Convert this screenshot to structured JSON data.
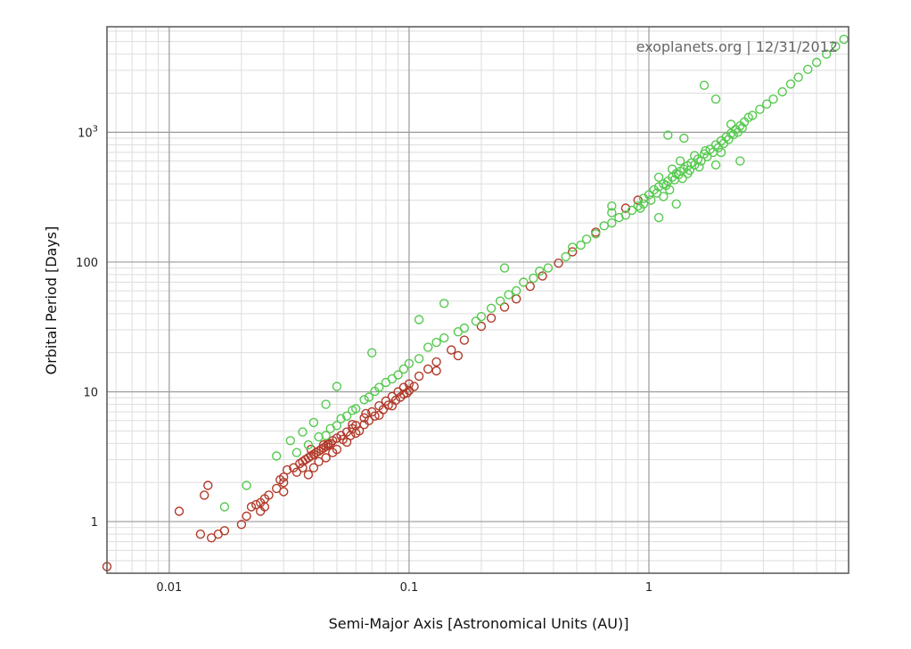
{
  "chart_data": {
    "type": "scatter",
    "title": "",
    "annotation": "exoplanets.org | 12/31/2012",
    "xlabel": "Semi-Major Axis [Astronomical Units (AU)]",
    "ylabel": "Orbital Period [Days]",
    "xscale": "log",
    "yscale": "log",
    "xlim": [
      0.0055,
      6.8
    ],
    "ylim": [
      0.4,
      6500
    ],
    "grid": true,
    "x_ticks": [
      {
        "value": 0.01,
        "label": "0.01"
      },
      {
        "value": 0.1,
        "label": "0.1"
      },
      {
        "value": 1,
        "label": "1"
      }
    ],
    "y_ticks": [
      {
        "value": 1,
        "label": "1"
      },
      {
        "value": 10,
        "label": "10"
      },
      {
        "value": 100,
        "label": "100"
      },
      {
        "value": 1000,
        "label": "10",
        "sup": "3"
      }
    ],
    "series": [
      {
        "marker": "open-circle",
        "color": "#b23a2a",
        "points": [
          [
            0.0055,
            0.45
          ],
          [
            0.011,
            1.2
          ],
          [
            0.014,
            1.6
          ],
          [
            0.0145,
            1.9
          ],
          [
            0.0135,
            0.8
          ],
          [
            0.015,
            0.75
          ],
          [
            0.016,
            0.8
          ],
          [
            0.017,
            0.85
          ],
          [
            0.02,
            0.95
          ],
          [
            0.021,
            1.1
          ],
          [
            0.022,
            1.3
          ],
          [
            0.023,
            1.35
          ],
          [
            0.024,
            1.4
          ],
          [
            0.025,
            1.5
          ],
          [
            0.026,
            1.6
          ],
          [
            0.028,
            1.8
          ],
          [
            0.029,
            2.1
          ],
          [
            0.03,
            2.2
          ],
          [
            0.031,
            2.5
          ],
          [
            0.033,
            2.6
          ],
          [
            0.035,
            2.8
          ],
          [
            0.036,
            2.9
          ],
          [
            0.037,
            3.0
          ],
          [
            0.038,
            3.1
          ],
          [
            0.039,
            3.2
          ],
          [
            0.04,
            3.3
          ],
          [
            0.041,
            3.4
          ],
          [
            0.042,
            3.5
          ],
          [
            0.043,
            3.6
          ],
          [
            0.044,
            3.7
          ],
          [
            0.045,
            3.8
          ],
          [
            0.046,
            3.9
          ],
          [
            0.047,
            4.0
          ],
          [
            0.048,
            4.2
          ],
          [
            0.05,
            4.4
          ],
          [
            0.052,
            4.6
          ],
          [
            0.055,
            4.9
          ],
          [
            0.058,
            5.2
          ],
          [
            0.06,
            5.5
          ],
          [
            0.065,
            6.3
          ],
          [
            0.07,
            7.0
          ],
          [
            0.075,
            7.8
          ],
          [
            0.08,
            8.5
          ],
          [
            0.085,
            9.2
          ],
          [
            0.09,
            10.0
          ],
          [
            0.095,
            10.8
          ],
          [
            0.1,
            11.5
          ],
          [
            0.11,
            13.2
          ],
          [
            0.12,
            15.0
          ],
          [
            0.13,
            17.0
          ],
          [
            0.15,
            21.0
          ],
          [
            0.17,
            25.0
          ],
          [
            0.2,
            32.0
          ],
          [
            0.22,
            37.0
          ],
          [
            0.25,
            45.0
          ],
          [
            0.28,
            52.0
          ],
          [
            0.32,
            65.0
          ],
          [
            0.36,
            78.0
          ],
          [
            0.42,
            98.0
          ],
          [
            0.48,
            120.0
          ],
          [
            0.6,
            170.0
          ],
          [
            0.8,
            260.0
          ],
          [
            0.9,
            300.0
          ],
          [
            0.038,
            2.3
          ],
          [
            0.045,
            3.1
          ],
          [
            0.05,
            3.6
          ],
          [
            0.055,
            4.1
          ],
          [
            0.04,
            2.6
          ],
          [
            0.042,
            2.9
          ],
          [
            0.048,
            3.4
          ],
          [
            0.024,
            1.2
          ],
          [
            0.025,
            1.3
          ],
          [
            0.03,
            1.7
          ],
          [
            0.06,
            4.8
          ],
          [
            0.065,
            5.6
          ],
          [
            0.075,
            6.6
          ],
          [
            0.085,
            7.8
          ],
          [
            0.095,
            9.6
          ],
          [
            0.1,
            10.2
          ],
          [
            0.105,
            11.0
          ],
          [
            0.13,
            14.5
          ],
          [
            0.16,
            19.0
          ],
          [
            0.03,
            2.0
          ],
          [
            0.034,
            2.4
          ],
          [
            0.036,
            2.6
          ],
          [
            0.053,
            4.3
          ],
          [
            0.057,
            4.6
          ],
          [
            0.062,
            5.0
          ],
          [
            0.068,
            6.0
          ],
          [
            0.072,
            6.5
          ],
          [
            0.078,
            7.3
          ],
          [
            0.082,
            7.9
          ],
          [
            0.088,
            8.6
          ],
          [
            0.092,
            9.1
          ],
          [
            0.098,
            9.8
          ],
          [
            0.058,
            5.6
          ],
          [
            0.066,
            6.8
          ],
          [
            0.044,
            3.9
          ],
          [
            0.046,
            4.0
          ],
          [
            0.039,
            3.6
          ]
        ]
      },
      {
        "marker": "open-circle",
        "color": "#56c94f",
        "points": [
          [
            0.017,
            1.3
          ],
          [
            0.021,
            1.9
          ],
          [
            0.028,
            3.2
          ],
          [
            0.032,
            4.2
          ],
          [
            0.036,
            4.9
          ],
          [
            0.04,
            5.8
          ],
          [
            0.045,
            4.6
          ],
          [
            0.05,
            5.5
          ],
          [
            0.055,
            6.5
          ],
          [
            0.06,
            7.4
          ],
          [
            0.068,
            9.1
          ],
          [
            0.075,
            10.8
          ],
          [
            0.085,
            12.6
          ],
          [
            0.1,
            16.5
          ],
          [
            0.11,
            18.0
          ],
          [
            0.12,
            22.0
          ],
          [
            0.14,
            26.0
          ],
          [
            0.17,
            31.0
          ],
          [
            0.2,
            38.0
          ],
          [
            0.24,
            50.0
          ],
          [
            0.28,
            60.0
          ],
          [
            0.33,
            75.0
          ],
          [
            0.38,
            90.0
          ],
          [
            0.45,
            110.0
          ],
          [
            0.52,
            135.0
          ],
          [
            0.6,
            165.0
          ],
          [
            0.7,
            200.0
          ],
          [
            0.8,
            230.0
          ],
          [
            0.9,
            270.0
          ],
          [
            0.95,
            310.0
          ],
          [
            1.0,
            330.0
          ],
          [
            1.05,
            360.0
          ],
          [
            1.1,
            380.0
          ],
          [
            1.15,
            400.0
          ],
          [
            1.2,
            420.0
          ],
          [
            1.25,
            450.0
          ],
          [
            1.3,
            480.0
          ],
          [
            1.35,
            500.0
          ],
          [
            1.4,
            520.0
          ],
          [
            1.45,
            550.0
          ],
          [
            1.5,
            580.0
          ],
          [
            1.6,
            620.0
          ],
          [
            1.7,
            680.0
          ],
          [
            1.8,
            740.0
          ],
          [
            1.9,
            800.0
          ],
          [
            2.0,
            860.0
          ],
          [
            2.1,
            920.0
          ],
          [
            2.2,
            980.0
          ],
          [
            2.3,
            1050.0
          ],
          [
            2.4,
            1120.0
          ],
          [
            2.5,
            1200.0
          ],
          [
            2.7,
            1350.0
          ],
          [
            2.9,
            1500.0
          ],
          [
            3.1,
            1650.0
          ],
          [
            3.3,
            1800.0
          ],
          [
            3.6,
            2050.0
          ],
          [
            3.9,
            2350.0
          ],
          [
            4.2,
            2650.0
          ],
          [
            4.6,
            3050.0
          ],
          [
            5.0,
            3450.0
          ],
          [
            5.5,
            4000.0
          ],
          [
            6.0,
            4600.0
          ],
          [
            6.5,
            5200.0
          ],
          [
            0.95,
            280.0
          ],
          [
            1.02,
            300.0
          ],
          [
            1.08,
            340.0
          ],
          [
            1.18,
            390.0
          ],
          [
            1.22,
            360.0
          ],
          [
            1.28,
            430.0
          ],
          [
            1.33,
            470.0
          ],
          [
            1.38,
            440.0
          ],
          [
            1.48,
            510.0
          ],
          [
            1.55,
            560.0
          ],
          [
            1.65,
            600.0
          ],
          [
            1.75,
            650.0
          ],
          [
            1.85,
            700.0
          ],
          [
            1.95,
            760.0
          ],
          [
            2.05,
            820.0
          ],
          [
            2.15,
            880.0
          ],
          [
            2.25,
            960.0
          ],
          [
            2.35,
            1000.0
          ],
          [
            2.45,
            1080.0
          ],
          [
            1.1,
            450.0
          ],
          [
            1.15,
            320.0
          ],
          [
            1.25,
            520.0
          ],
          [
            1.35,
            600.0
          ],
          [
            1.45,
            480.0
          ],
          [
            1.55,
            660.0
          ],
          [
            1.62,
            540.0
          ],
          [
            1.72,
            720.0
          ],
          [
            2.0,
            700.0
          ],
          [
            2.2,
            1150.0
          ],
          [
            2.6,
            1300.0
          ],
          [
            0.85,
            250.0
          ],
          [
            0.92,
            260.0
          ],
          [
            1.3,
            280.0
          ],
          [
            0.65,
            190.0
          ],
          [
            0.75,
            220.0
          ],
          [
            0.55,
            150.0
          ],
          [
            0.48,
            130.0
          ],
          [
            0.35,
            85.0
          ],
          [
            0.3,
            70.0
          ],
          [
            0.26,
            56.0
          ],
          [
            0.22,
            44.0
          ],
          [
            0.19,
            35.0
          ],
          [
            0.16,
            29.0
          ],
          [
            0.13,
            24.0
          ],
          [
            0.095,
            15.0
          ],
          [
            0.09,
            13.5
          ],
          [
            0.08,
            11.8
          ],
          [
            0.072,
            10.1
          ],
          [
            0.065,
            8.7
          ],
          [
            0.058,
            7.2
          ],
          [
            0.052,
            6.2
          ],
          [
            0.047,
            5.2
          ],
          [
            0.042,
            4.5
          ],
          [
            0.038,
            3.9
          ],
          [
            0.034,
            3.4
          ],
          [
            0.7,
            240.0
          ],
          [
            1.7,
            2300.0
          ],
          [
            1.9,
            1800.0
          ],
          [
            1.2,
            950.0
          ],
          [
            1.4,
            900.0
          ],
          [
            2.4,
            600.0
          ],
          [
            1.9,
            560.0
          ],
          [
            1.1,
            220.0
          ],
          [
            0.7,
            270.0
          ],
          [
            0.25,
            90.0
          ],
          [
            0.14,
            48.0
          ],
          [
            0.11,
            36.0
          ],
          [
            0.07,
            20.0
          ],
          [
            0.05,
            11.0
          ],
          [
            0.045,
            8.0
          ]
        ]
      }
    ]
  }
}
